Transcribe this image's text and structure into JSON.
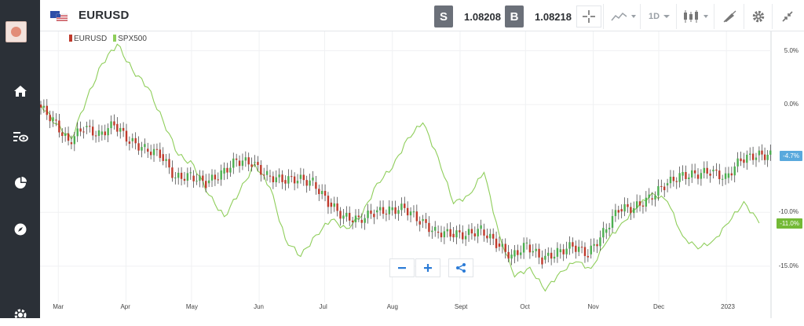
{
  "instrument": {
    "name": "EURUSD",
    "sell_label": "S",
    "sell_price": "1.08208",
    "buy_label": "B",
    "buy_price": "1.08218"
  },
  "toolbar": {
    "timeframe_label": "1D"
  },
  "legend": [
    {
      "name": "EURUSD",
      "color": "#c0392b"
    },
    {
      "name": "SPX500",
      "color": "#8fce5b"
    }
  ],
  "axis": {
    "x_ticks": [
      "Mar",
      "Apr",
      "May",
      "Jun",
      "Jul",
      "Aug",
      "Sept",
      "Oct",
      "Nov",
      "Dec",
      "2023"
    ],
    "y_ticks": [
      "5.0%",
      "0.0%",
      "-10.0%",
      "-15.0%"
    ]
  },
  "badges": {
    "eurusd_value": "-4.7%",
    "spx_value": "-11.0%"
  },
  "colors": {
    "up": "#4caf50",
    "down": "#c0392b",
    "spx_line": "#8fce5b",
    "eurusd_badge": "#59a9dd",
    "spx_badge": "#73b936"
  },
  "chart_data": {
    "type": "line",
    "x_range": [
      "2022-02-21",
      "2023-01-20"
    ],
    "y_range": [
      -18.0,
      6.5
    ],
    "series": [
      {
        "name": "EURUSD",
        "style": "candlestick",
        "points": [
          [
            "2022-02-21",
            0.0
          ],
          [
            "2022-02-28",
            -1.4
          ],
          [
            "2022-03-07",
            -3.5
          ],
          [
            "2022-03-14",
            -2.1
          ],
          [
            "2022-03-21",
            -2.8
          ],
          [
            "2022-03-28",
            -1.8
          ],
          [
            "2022-04-04",
            -3.4
          ],
          [
            "2022-04-11",
            -4.1
          ],
          [
            "2022-04-18",
            -4.6
          ],
          [
            "2022-04-25",
            -6.8
          ],
          [
            "2022-05-02",
            -6.6
          ],
          [
            "2022-05-09",
            -7.3
          ],
          [
            "2022-05-16",
            -6.4
          ],
          [
            "2022-05-23",
            -5.2
          ],
          [
            "2022-05-30",
            -5.4
          ],
          [
            "2022-06-06",
            -6.6
          ],
          [
            "2022-06-13",
            -7.0
          ],
          [
            "2022-06-20",
            -6.9
          ],
          [
            "2022-06-27",
            -7.2
          ],
          [
            "2022-07-04",
            -9.1
          ],
          [
            "2022-07-11",
            -10.4
          ],
          [
            "2022-07-18",
            -10.7
          ],
          [
            "2022-07-25",
            -10.0
          ],
          [
            "2022-08-01",
            -9.8
          ],
          [
            "2022-08-08",
            -9.6
          ],
          [
            "2022-08-15",
            -10.8
          ],
          [
            "2022-08-22",
            -11.8
          ],
          [
            "2022-08-29",
            -12.0
          ],
          [
            "2022-09-05",
            -12.1
          ],
          [
            "2022-09-12",
            -11.6
          ],
          [
            "2022-09-19",
            -12.9
          ],
          [
            "2022-09-26",
            -14.1
          ],
          [
            "2022-10-03",
            -13.0
          ],
          [
            "2022-10-10",
            -14.4
          ],
          [
            "2022-10-17",
            -13.7
          ],
          [
            "2022-10-24",
            -13.1
          ],
          [
            "2022-10-31",
            -13.9
          ],
          [
            "2022-11-07",
            -11.9
          ],
          [
            "2022-11-14",
            -9.7
          ],
          [
            "2022-11-21",
            -9.6
          ],
          [
            "2022-11-28",
            -8.7
          ],
          [
            "2022-12-05",
            -7.5
          ],
          [
            "2022-12-12",
            -6.6
          ],
          [
            "2022-12-19",
            -6.5
          ],
          [
            "2022-12-26",
            -6.2
          ],
          [
            "2023-01-02",
            -6.8
          ],
          [
            "2023-01-09",
            -5.1
          ],
          [
            "2023-01-16",
            -4.7
          ]
        ]
      },
      {
        "name": "SPX500",
        "style": "line",
        "points": [
          [
            "2022-02-21",
            0.0
          ],
          [
            "2022-02-28",
            -1.8
          ],
          [
            "2022-03-07",
            -3.2
          ],
          [
            "2022-03-14",
            0.5
          ],
          [
            "2022-03-21",
            3.8
          ],
          [
            "2022-03-28",
            5.6
          ],
          [
            "2022-04-04",
            3.2
          ],
          [
            "2022-04-11",
            1.6
          ],
          [
            "2022-04-18",
            -1.5
          ],
          [
            "2022-04-25",
            -4.7
          ],
          [
            "2022-05-02",
            -5.6
          ],
          [
            "2022-05-09",
            -8.4
          ],
          [
            "2022-05-16",
            -10.4
          ],
          [
            "2022-05-23",
            -8.1
          ],
          [
            "2022-05-30",
            -5.5
          ],
          [
            "2022-06-06",
            -7.7
          ],
          [
            "2022-06-13",
            -12.5
          ],
          [
            "2022-06-20",
            -14.1
          ],
          [
            "2022-06-27",
            -12.1
          ],
          [
            "2022-07-04",
            -10.7
          ],
          [
            "2022-07-11",
            -11.5
          ],
          [
            "2022-07-18",
            -10.3
          ],
          [
            "2022-07-25",
            -7.3
          ],
          [
            "2022-08-01",
            -5.9
          ],
          [
            "2022-08-08",
            -3.1
          ],
          [
            "2022-08-15",
            -1.7
          ],
          [
            "2022-08-22",
            -4.9
          ],
          [
            "2022-08-29",
            -9.2
          ],
          [
            "2022-09-05",
            -8.4
          ],
          [
            "2022-09-12",
            -6.3
          ],
          [
            "2022-09-19",
            -12.1
          ],
          [
            "2022-09-26",
            -16.0
          ],
          [
            "2022-10-03",
            -15.1
          ],
          [
            "2022-10-10",
            -17.3
          ],
          [
            "2022-10-17",
            -15.5
          ],
          [
            "2022-10-24",
            -14.6
          ],
          [
            "2022-10-31",
            -15.2
          ],
          [
            "2022-11-07",
            -12.8
          ],
          [
            "2022-11-14",
            -11.0
          ],
          [
            "2022-11-21",
            -9.6
          ],
          [
            "2022-11-28",
            -8.2
          ],
          [
            "2022-12-05",
            -9.0
          ],
          [
            "2022-12-12",
            -12.2
          ],
          [
            "2022-12-19",
            -13.4
          ],
          [
            "2022-12-26",
            -12.6
          ],
          [
            "2023-01-02",
            -11.0
          ],
          [
            "2023-01-09",
            -9.0
          ],
          [
            "2023-01-16",
            -11.0
          ]
        ]
      }
    ]
  }
}
